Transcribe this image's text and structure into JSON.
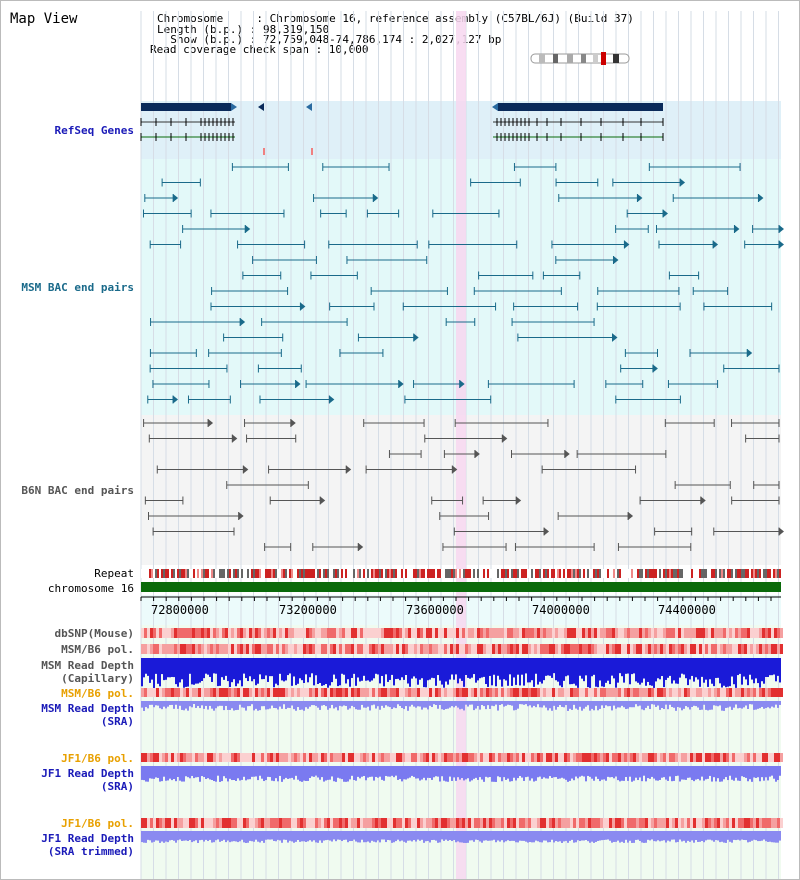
{
  "title": "Map View",
  "header": {
    "line1": "Chromosome     : Chromosome 16, reference assembly (C57BL/6J) (Build 37)",
    "line2": "Length (b.p.) : 98,319,150",
    "line3": "  Show (b.p.) : 72,759,048-74,786,174 : 2,027,127 bp",
    "line4": "Read coverage check span : 10,000"
  },
  "tracks": {
    "refseq": "RefSeq Genes",
    "msm_bac": "MSM BAC end pairs",
    "b6n_bac": "B6N BAC end pairs",
    "repeat": "Repeat",
    "chrom": "chromosome 16",
    "dbsnp": "dbSNP(Mouse)",
    "msm_pol1": "MSM/B6 pol.",
    "msm_depth_cap_1": "MSM Read Depth",
    "msm_depth_cap_2": "(Capillary)",
    "msm_pol2": "MSM/B6 pol.",
    "msm_depth_sra_1": "MSM Read Depth",
    "msm_depth_sra_2": "(SRA)",
    "jf1_pol1": "JF1/B6 pol.",
    "jf1_depth_1": "JF1 Read Depth",
    "jf1_depth_2": "(SRA)",
    "jf1_pol2": "JF1/B6 pol.",
    "jf1_trim_1": "JF1 Read Depth",
    "jf1_trim_2": "(SRA trimmed)"
  },
  "axis_ticks": [
    "72800000",
    "73200000",
    "73600000",
    "74000000",
    "74400000"
  ],
  "colors": {
    "refseq_bg": "#dff0f8",
    "msm_bg": "#e3f9f9",
    "b6n_bg": "#f4f4f4",
    "highlight": "#f7d7f0",
    "gene": "#0a2a5a",
    "msm_line": "#1a6a8a",
    "b6n_line": "#555555",
    "chrom": "#0a6a0a",
    "depth_blue": "#1a1ad8",
    "depth_light": "#8a8af0"
  }
}
